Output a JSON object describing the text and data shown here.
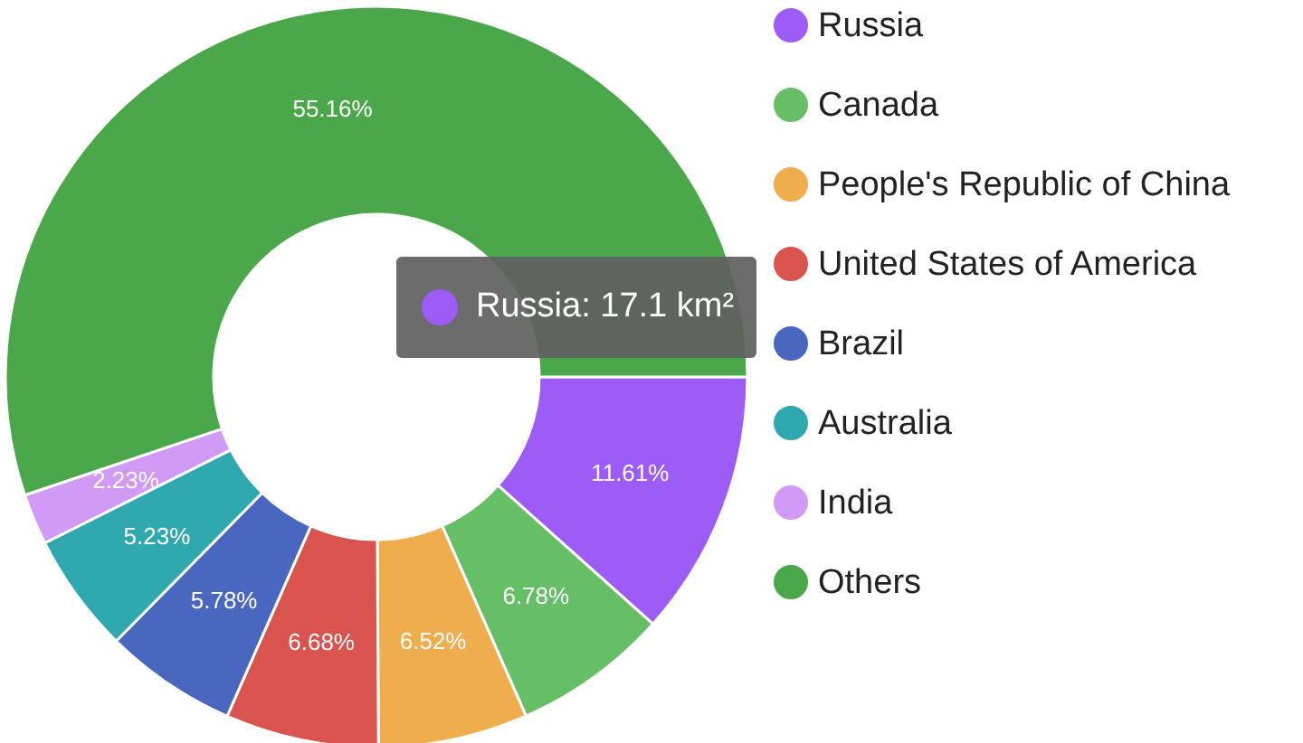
{
  "chart_data": {
    "type": "donut",
    "categories": [
      "Russia",
      "Canada",
      "People's Republic of China",
      "United States of America",
      "Brazil",
      "Australia",
      "India",
      "Others"
    ],
    "values": [
      11.61,
      6.78,
      6.52,
      6.68,
      5.78,
      5.23,
      2.23,
      55.16
    ],
    "value_labels": [
      "11.61%",
      "6.78%",
      "6.52%",
      "6.68%",
      "5.78%",
      "5.23%",
      "2.23%",
      "55.16%"
    ],
    "colors": [
      "#9c5cf5",
      "#66bf66",
      "#f0ad4e",
      "#d9534f",
      "#4a67c0",
      "#2fa8b0",
      "#d09af5",
      "#4aa84a"
    ],
    "legend": "right",
    "annotations": [
      "Russia: 17.1 km²"
    ]
  }
}
